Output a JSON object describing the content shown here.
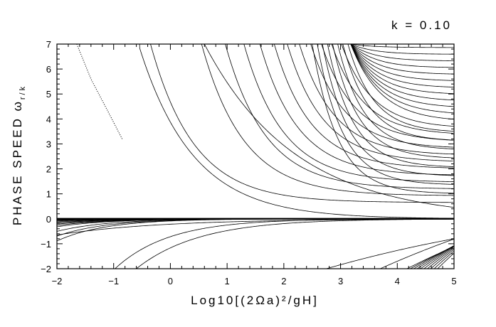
{
  "chart_data": {
    "type": "line",
    "title": "k = 0.10",
    "xlabel": "Log10[(2Ωa)²/gH]",
    "ylabel": "PHASE SPEED ω",
    "ylabel_subscript": "r/k",
    "xlim": [
      -2,
      5
    ],
    "ylim": [
      -2,
      7
    ],
    "xticks": [
      -2,
      -1,
      0,
      1,
      2,
      3,
      4,
      5
    ],
    "yticks": [
      -2,
      -1,
      0,
      1,
      2,
      3,
      4,
      5,
      6,
      7
    ],
    "grid": false,
    "series_groups": [
      {
        "name_hint": "",
        "kind": "gravity-eastward",
        "count": 26,
        "n_start": 1,
        "style": "solid"
      },
      {
        "kind": "rossby",
        "count": 14,
        "style": "solid"
      },
      {
        "kind": "gravity-westward",
        "count": 12,
        "style": "solid"
      },
      {
        "kind": "kelvin-like",
        "count": 2,
        "style": "solid"
      }
    ],
    "dotted_curve": {
      "x": [
        -1.65,
        -1.4,
        -1.1,
        -0.85
      ],
      "y": [
        7.0,
        5.6,
        4.3,
        3.2
      ]
    }
  }
}
